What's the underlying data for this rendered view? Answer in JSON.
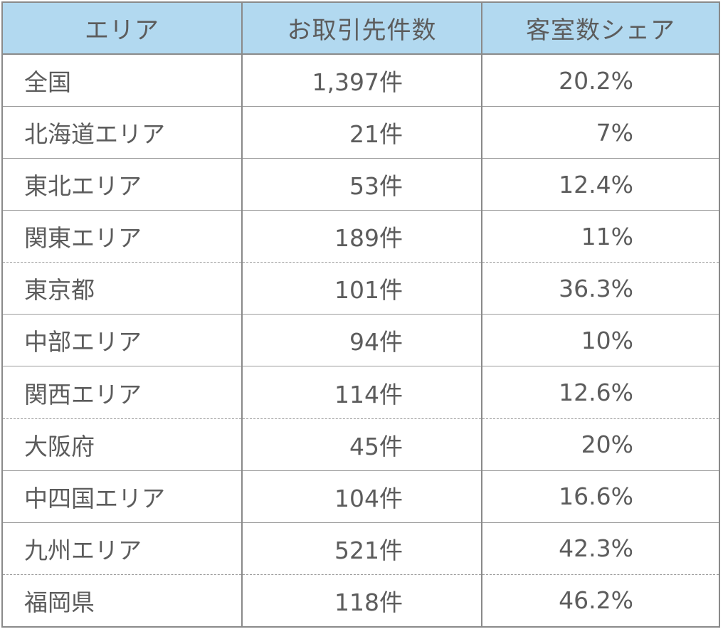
{
  "table": {
    "headers": [
      "エリア",
      "お取引先件数",
      "客室数シェア"
    ],
    "rows": [
      {
        "area": "全国",
        "count": "1,397件",
        "share": "20.2%"
      },
      {
        "area": "北海道エリア",
        "count": "21件",
        "share": "7%"
      },
      {
        "area": "東北エリア",
        "count": "53件",
        "share": "12.4%"
      },
      {
        "area": "関東エリア",
        "count": "189件",
        "share": "11%"
      },
      {
        "area": "東京都",
        "count": "101件",
        "share": "36.3%"
      },
      {
        "area": "中部エリア",
        "count": "94件",
        "share": "10%"
      },
      {
        "area": "関西エリア",
        "count": "114件",
        "share": "12.6%"
      },
      {
        "area": "大阪府",
        "count": "45件",
        "share": "20%"
      },
      {
        "area": "中四国エリア",
        "count": "104件",
        "share": "16.6%"
      },
      {
        "area": "九州エリア",
        "count": "521件",
        "share": "42.3%"
      },
      {
        "area": "福岡県",
        "count": "118件",
        "share": "46.2%"
      }
    ]
  },
  "colors": {
    "header_bg": "#b2d9f0",
    "text": "#5c5c5c",
    "border": "#8a8a8a"
  }
}
